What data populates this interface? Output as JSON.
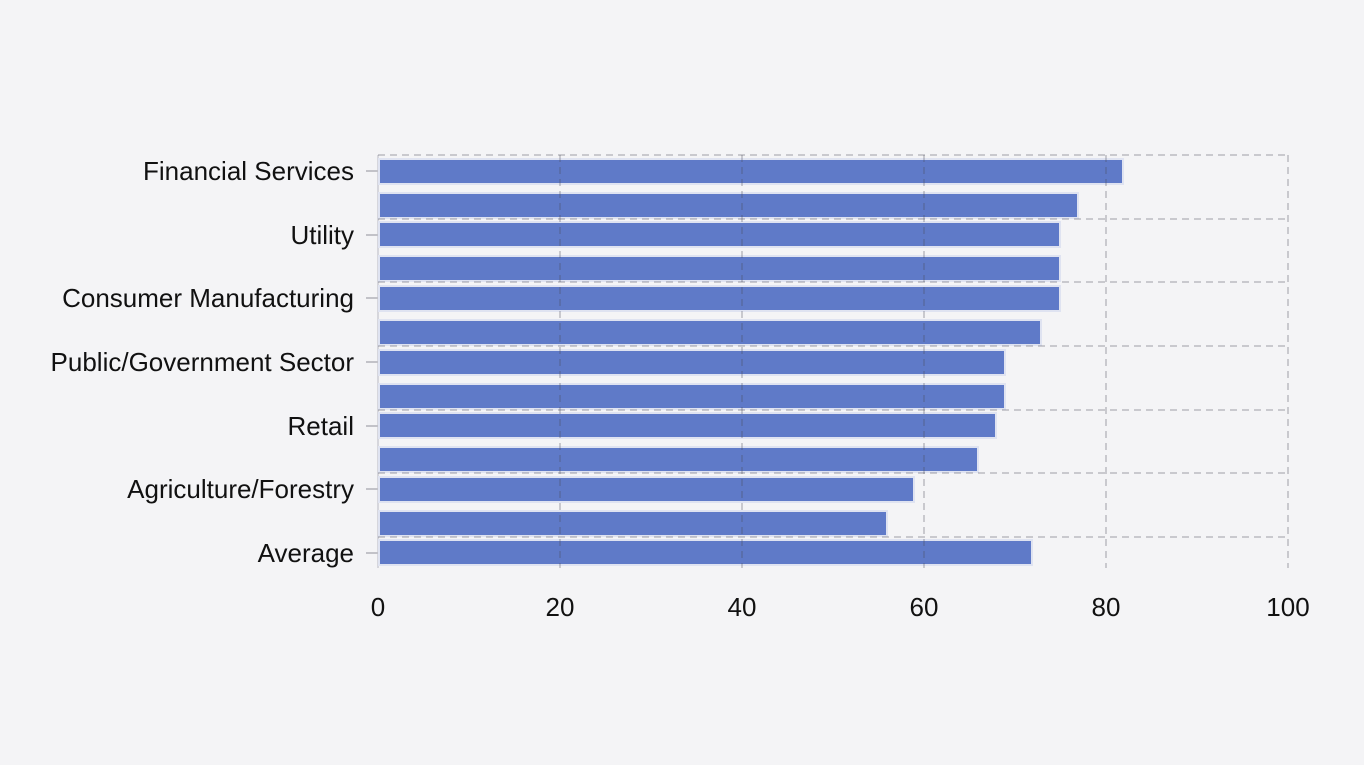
{
  "chart_data": {
    "type": "bar",
    "orientation": "horizontal",
    "title": "",
    "xlabel": "",
    "ylabel": "",
    "xlim": [
      0,
      100
    ],
    "xticks": [
      0,
      20,
      40,
      60,
      80,
      100
    ],
    "grid": "dashed",
    "legend": "none",
    "bar_color": "#5f7ac8",
    "bar_edge_color": "#dfe3f1",
    "background_color": "#f4f4f6",
    "gridline_color": "#c9c9ce",
    "rows": [
      {
        "label": "Financial Services",
        "values": [
          82,
          77
        ]
      },
      {
        "label": "Utility",
        "values": [
          75,
          75
        ]
      },
      {
        "label": "Consumer Manufacturing",
        "values": [
          75,
          73
        ]
      },
      {
        "label": "Public/Government Sector",
        "values": [
          69,
          69
        ]
      },
      {
        "label": "Retail",
        "values": [
          68,
          66
        ]
      },
      {
        "label": "Agriculture/Forestry",
        "values": [
          59,
          56
        ]
      },
      {
        "label": "Average",
        "values": [
          72
        ]
      }
    ]
  }
}
